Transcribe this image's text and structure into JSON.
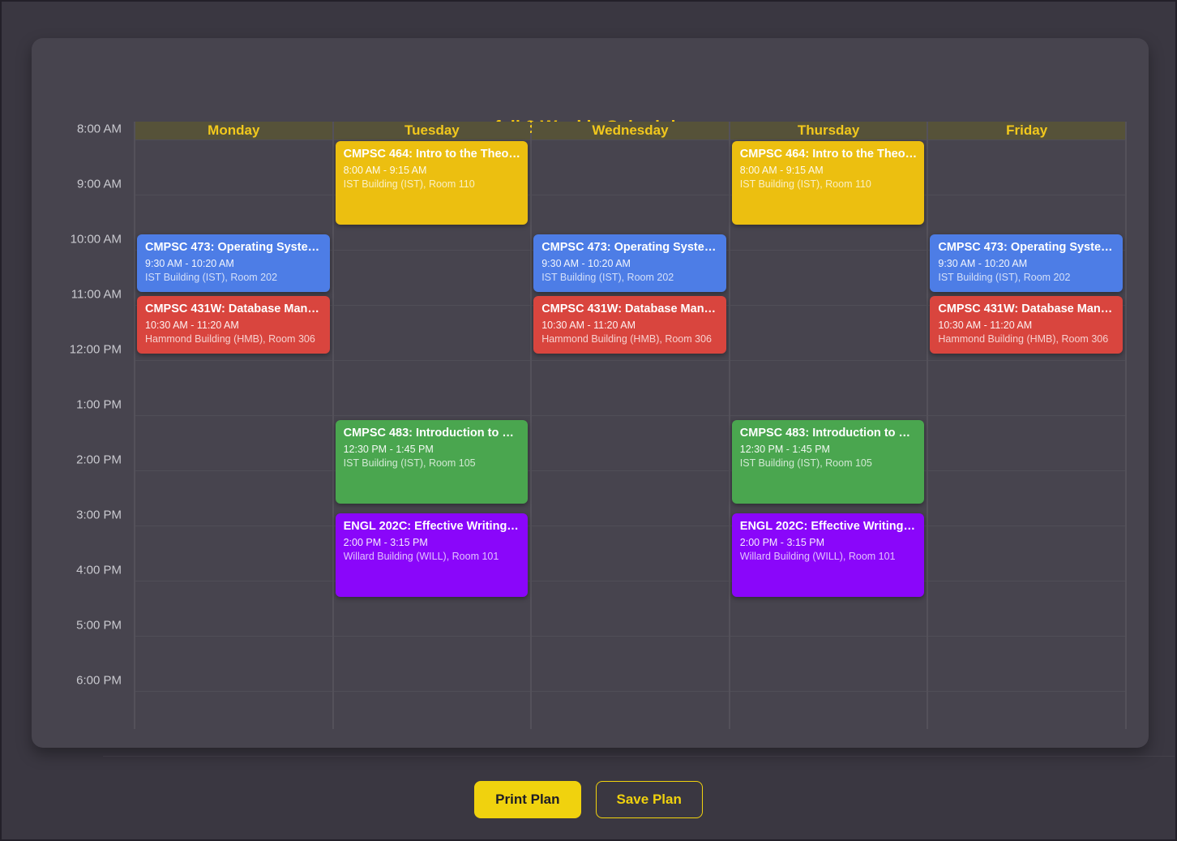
{
  "title": "fall 3 Weekly Schedule",
  "days": [
    "Monday",
    "Tuesday",
    "Wednesday",
    "Thursday",
    "Friday"
  ],
  "time_labels": [
    "8:00 AM",
    "9:00 AM",
    "10:00 AM",
    "11:00 AM",
    "12:00 PM",
    "1:00 PM",
    "2:00 PM",
    "3:00 PM",
    "4:00 PM",
    "5:00 PM",
    "6:00 PM"
  ],
  "events": [
    {
      "day": "Monday",
      "title": "CMPSC 473: Operating Syste…",
      "time": "9:30 AM - 10:20 AM",
      "location": "IST Building (IST), Room 202",
      "color": "#4d7de6"
    },
    {
      "day": "Monday",
      "title": "CMPSC 431W: Database Man…",
      "time": "10:30 AM - 11:20 AM",
      "location": "Hammond Building (HMB), Room 306",
      "color": "#d9453e"
    },
    {
      "day": "Tuesday",
      "title": "CMPSC 464: Intro to the Theo…",
      "time": "8:00 AM - 9:15 AM",
      "location": "IST Building (IST), Room 110",
      "color": "#ecbf10"
    },
    {
      "day": "Tuesday",
      "title": "CMPSC 483: Introduction to …",
      "time": "12:30 PM - 1:45 PM",
      "location": "IST Building (IST), Room 105",
      "color": "#4aa64f"
    },
    {
      "day": "Tuesday",
      "title": "ENGL 202C: Effective Writing…",
      "time": "2:00 PM - 3:15 PM",
      "location": "Willard Building (WILL), Room 101",
      "color": "#8a06fa"
    },
    {
      "day": "Wednesday",
      "title": "CMPSC 473: Operating Syste…",
      "time": "9:30 AM - 10:20 AM",
      "location": "IST Building (IST), Room 202",
      "color": "#4d7de6"
    },
    {
      "day": "Wednesday",
      "title": "CMPSC 431W: Database Man…",
      "time": "10:30 AM - 11:20 AM",
      "location": "Hammond Building (HMB), Room 306",
      "color": "#d9453e"
    },
    {
      "day": "Thursday",
      "title": "CMPSC 464: Intro to the Theo…",
      "time": "8:00 AM - 9:15 AM",
      "location": "IST Building (IST), Room 110",
      "color": "#ecbf10"
    },
    {
      "day": "Thursday",
      "title": "CMPSC 483: Introduction to …",
      "time": "12:30 PM - 1:45 PM",
      "location": "IST Building (IST), Room 105",
      "color": "#4aa64f"
    },
    {
      "day": "Thursday",
      "title": "ENGL 202C: Effective Writing…",
      "time": "2:00 PM - 3:15 PM",
      "location": "Willard Building (WILL), Room 101",
      "color": "#8a06fa"
    },
    {
      "day": "Friday",
      "title": "CMPSC 473: Operating Syste…",
      "time": "9:30 AM - 10:20 AM",
      "location": "IST Building (IST), Room 202",
      "color": "#4d7de6"
    },
    {
      "day": "Friday",
      "title": "CMPSC 431W: Database Man…",
      "time": "10:30 AM - 11:20 AM",
      "location": "Hammond Building (HMB), Room 306",
      "color": "#d9453e"
    }
  ],
  "buttons": {
    "print_label": "Print Plan",
    "save_label": "Save Plan"
  },
  "colors": {
    "accent_yellow": "#f2c60e",
    "header_band": "#565239",
    "event_blue": "#4d7de6",
    "event_red": "#d9453e",
    "event_yellow": "#ecbf10",
    "event_green": "#4aa64f",
    "event_purple": "#8a06fa"
  }
}
